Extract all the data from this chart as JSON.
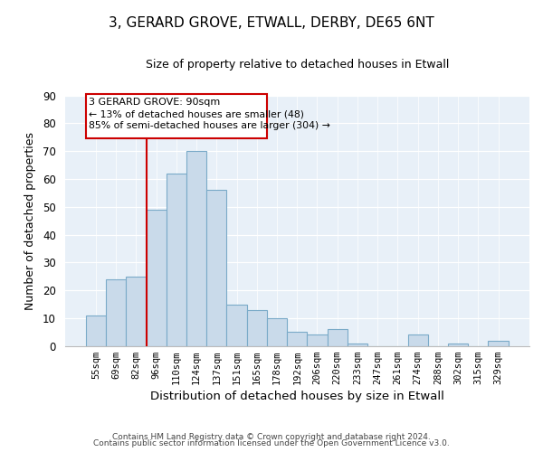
{
  "title": "3, GERARD GROVE, ETWALL, DERBY, DE65 6NT",
  "subtitle": "Size of property relative to detached houses in Etwall",
  "xlabel": "Distribution of detached houses by size in Etwall",
  "ylabel": "Number of detached properties",
  "bin_labels": [
    "55sqm",
    "69sqm",
    "82sqm",
    "96sqm",
    "110sqm",
    "124sqm",
    "137sqm",
    "151sqm",
    "165sqm",
    "178sqm",
    "192sqm",
    "206sqm",
    "220sqm",
    "233sqm",
    "247sqm",
    "261sqm",
    "274sqm",
    "288sqm",
    "302sqm",
    "315sqm",
    "329sqm"
  ],
  "bar_heights": [
    11,
    24,
    25,
    49,
    62,
    70,
    56,
    15,
    13,
    10,
    5,
    4,
    6,
    1,
    0,
    0,
    4,
    0,
    1,
    0,
    2
  ],
  "bar_color": "#c9daea",
  "bar_edge_color": "#7aaac8",
  "vline_color": "#cc0000",
  "ylim": [
    0,
    90
  ],
  "yticks": [
    0,
    10,
    20,
    30,
    40,
    50,
    60,
    70,
    80,
    90
  ],
  "annotation_title": "3 GERARD GROVE: 90sqm",
  "annotation_line1": "← 13% of detached houses are smaller (48)",
  "annotation_line2": "85% of semi-detached houses are larger (304) →",
  "footer1": "Contains HM Land Registry data © Crown copyright and database right 2024.",
  "footer2": "Contains public sector information licensed under the Open Government Licence v3.0.",
  "bg_color": "#e8f0f8"
}
